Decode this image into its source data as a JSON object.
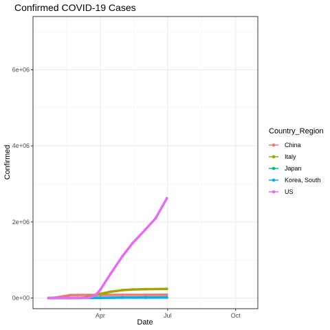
{
  "chart_data": {
    "type": "line",
    "title": "Confirmed COVID-19 Cases",
    "xlabel": "Date",
    "ylabel": "Confirmed",
    "x_axis_type": "date",
    "xlim": [
      "2020-01-01",
      "2020-10-31"
    ],
    "ylim": [
      -280000,
      7400000
    ],
    "x_ticks": [
      {
        "date": "2020-04-01",
        "label": "Apr"
      },
      {
        "date": "2020-07-01",
        "label": "Jul"
      },
      {
        "date": "2020-10-01",
        "label": "Oct"
      }
    ],
    "y_ticks": [
      {
        "value": 0,
        "label": "0e+00"
      },
      {
        "value": 2000000,
        "label": "2e+06"
      },
      {
        "value": 4000000,
        "label": "4e+06"
      },
      {
        "value": 6000000,
        "label": "6e+06"
      }
    ],
    "grid": true,
    "legend": {
      "title": "Country_Region",
      "position": "right"
    },
    "series": [
      {
        "name": "China",
        "color": "#F8766D",
        "x": [
          "2020-01-22",
          "2020-02-01",
          "2020-02-10",
          "2020-02-20",
          "2020-03-01",
          "2020-04-01",
          "2020-05-01",
          "2020-06-01",
          "2020-06-30"
        ],
        "y": [
          550,
          12000,
          42000,
          76000,
          80000,
          82000,
          84000,
          84000,
          85000
        ]
      },
      {
        "name": "Italy",
        "color": "#A3A500",
        "x": [
          "2020-01-22",
          "2020-02-20",
          "2020-03-01",
          "2020-03-10",
          "2020-03-20",
          "2020-04-01",
          "2020-04-15",
          "2020-05-01",
          "2020-05-15",
          "2020-06-01",
          "2020-06-30"
        ],
        "y": [
          0,
          3,
          1700,
          10000,
          47000,
          110000,
          165000,
          207000,
          224000,
          233000,
          240000
        ]
      },
      {
        "name": "Japan",
        "color": "#00BF7D",
        "x": [
          "2020-01-22",
          "2020-03-01",
          "2020-04-01",
          "2020-05-01",
          "2020-06-01",
          "2020-06-30"
        ],
        "y": [
          2,
          250,
          2400,
          14000,
          17000,
          19000
        ]
      },
      {
        "name": "Korea, South",
        "color": "#00B0F6",
        "x": [
          "2020-01-22",
          "2020-02-20",
          "2020-03-01",
          "2020-04-01",
          "2020-05-01",
          "2020-06-01",
          "2020-06-30"
        ],
        "y": [
          1,
          100,
          4000,
          10000,
          11000,
          11500,
          12800
        ]
      },
      {
        "name": "US",
        "color": "#E76BF3",
        "x": [
          "2020-01-22",
          "2020-03-01",
          "2020-03-15",
          "2020-03-25",
          "2020-04-01",
          "2020-04-15",
          "2020-05-01",
          "2020-05-15",
          "2020-06-01",
          "2020-06-15",
          "2020-06-30"
        ],
        "y": [
          1,
          30,
          3500,
          65000,
          215000,
          640000,
          1100000,
          1450000,
          1800000,
          2100000,
          2620000
        ]
      }
    ]
  }
}
